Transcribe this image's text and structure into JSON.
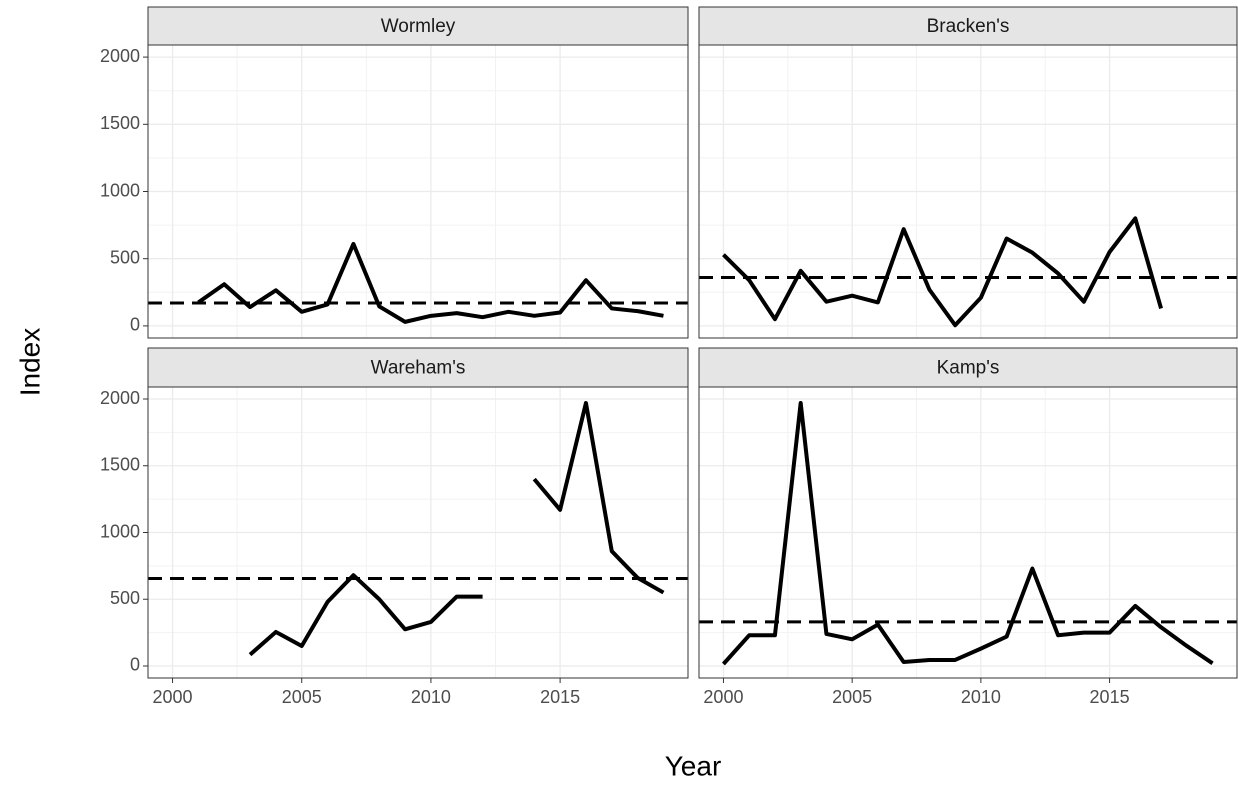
{
  "xlabel": "Year",
  "ylabel": "Index",
  "chart_data": [
    {
      "type": "line",
      "title": "Wormley",
      "x": [
        2001,
        2002,
        2003,
        2004,
        2005,
        2006,
        2007,
        2008,
        2009,
        2010,
        2011,
        2012,
        2013,
        2014,
        2015,
        2016,
        2017,
        2018,
        2019
      ],
      "values": [
        175,
        310,
        140,
        265,
        105,
        160,
        610,
        145,
        30,
        75,
        95,
        65,
        105,
        75,
        100,
        340,
        130,
        110,
        75
      ],
      "reference_line": 170,
      "color": "#000000",
      "xlim": [
        1999.05,
        2019.95
      ],
      "xticks": [
        2000,
        2005,
        2010,
        2015
      ],
      "ylim": [
        -90,
        2090
      ],
      "yticks": [
        0,
        500,
        1000,
        1500,
        2000
      ],
      "grid": true
    },
    {
      "type": "line",
      "title": "Bracken's",
      "x": [
        2000,
        2001,
        2002,
        2003,
        2004,
        2005,
        2006,
        2007,
        2008,
        2009,
        2010,
        2011,
        2012,
        2013,
        2014,
        2015,
        2016,
        2017
      ],
      "values": [
        530,
        340,
        50,
        410,
        180,
        225,
        175,
        720,
        270,
        5,
        210,
        650,
        545,
        390,
        180,
        550,
        800,
        130
      ],
      "reference_line": 360,
      "color": "#000000",
      "xlim": [
        1999.05,
        2019.95
      ],
      "xticks": [
        2000,
        2005,
        2010,
        2015
      ],
      "ylim": [
        -90,
        2090
      ],
      "yticks": [
        0,
        500,
        1000,
        1500,
        2000
      ],
      "grid": true
    },
    {
      "type": "line",
      "title": "Wareham's",
      "x": [
        2003,
        2004,
        2005,
        2006,
        2007,
        2008,
        2009,
        2010,
        2011,
        2012,
        2013,
        2014,
        2015,
        2016,
        2017,
        2018,
        2019
      ],
      "values": [
        85,
        255,
        150,
        480,
        680,
        500,
        275,
        330,
        520,
        520,
        null,
        1400,
        1170,
        1970,
        860,
        660,
        550
      ],
      "reference_line": 655,
      "color": "#000000",
      "xlim": [
        1999.05,
        2019.95
      ],
      "xticks": [
        2000,
        2005,
        2010,
        2015
      ],
      "ylim": [
        -90,
        2090
      ],
      "yticks": [
        0,
        500,
        1000,
        1500,
        2000
      ],
      "grid": true
    },
    {
      "type": "line",
      "title": "Kamp's",
      "x": [
        2000,
        2001,
        2002,
        2003,
        2004,
        2005,
        2006,
        2007,
        2008,
        2009,
        2010,
        2011,
        2012,
        2013,
        2014,
        2015,
        2016,
        2017,
        2018,
        2019
      ],
      "values": [
        15,
        230,
        230,
        1970,
        240,
        200,
        310,
        30,
        45,
        45,
        130,
        220,
        730,
        230,
        250,
        250,
        450,
        290,
        150,
        20
      ],
      "reference_line": 330,
      "color": "#000000",
      "xlim": [
        1999.05,
        2019.95
      ],
      "xticks": [
        2000,
        2005,
        2010,
        2015
      ],
      "ylim": [
        -90,
        2090
      ],
      "yticks": [
        0,
        500,
        1000,
        1500,
        2000
      ],
      "grid": true
    }
  ]
}
